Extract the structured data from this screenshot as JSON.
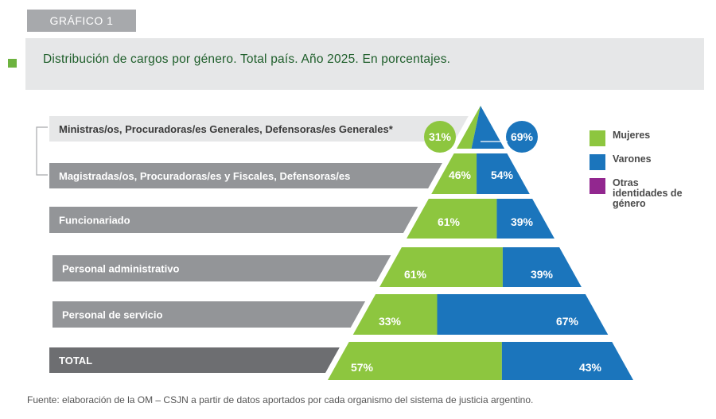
{
  "badge": "GRÁFICO 1",
  "footer": "Fuente: elaboración de la OM – CSJN a partir de datos aportados por cada organismo del sistema de justicia argentino.",
  "legend": [
    {
      "label": "Mujeres",
      "color": "#8dc63f"
    },
    {
      "label": "Varones",
      "color": "#1b75bc"
    },
    {
      "label": "Otras identidades de género",
      "color": "#92278f"
    }
  ],
  "chart_data": {
    "type": "bar",
    "title": "Distribución de cargos por género. Total país. Año 2025. En porcentajes.",
    "categories": [
      "Ministras/os, Procuradoras/es Generales, Defensoras/es Generales*",
      "Magistradas/os, Procuradoras/es y Fiscales, Defensoras/es",
      "Funcionariado",
      "Personal administrativo",
      "Personal de servicio",
      "TOTAL"
    ],
    "series": [
      {
        "name": "Mujeres",
        "values": [
          31,
          46,
          61,
          61,
          33,
          57
        ]
      },
      {
        "name": "Varones",
        "values": [
          69,
          54,
          39,
          39,
          67,
          43
        ]
      }
    ],
    "value_labels": {
      "Mujeres": [
        "31%",
        "46%",
        "61%",
        "61%",
        "33%",
        "57%"
      ],
      "Varones": [
        "69%",
        "54%",
        "39%",
        "39%",
        "67%",
        "43%"
      ]
    },
    "stacked": true,
    "ylim": [
      0,
      100
    ]
  }
}
